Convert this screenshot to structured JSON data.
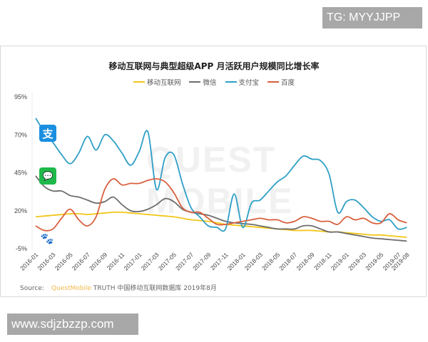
{
  "watermarks": {
    "top": "TG: MYYJJPP",
    "bottom": "www.sdjzbzzp.com",
    "background": "QUEST MOBILE"
  },
  "source": {
    "label": "Source:",
    "brand": "QuestMobile",
    "text": "TRUTH 中国移动互联网数据库 2019年8月"
  },
  "icons": {
    "alipay": "alipay-icon",
    "wechat": "wechat-icon",
    "baidu": "baidu-icon"
  },
  "chart_data": {
    "type": "line",
    "title": "移动互联网与典型超级APP 月活跃用户规模同比增长率",
    "xlabel": "",
    "ylabel": "",
    "ylim": [
      -5,
      95
    ],
    "yticks": [
      "95%",
      "70%",
      "45%",
      "20%",
      "-5%"
    ],
    "grid": false,
    "legend_position": "top",
    "xtick_labels": [
      "2016-01",
      "2016-03",
      "2016-05",
      "2016-07",
      "2016-09",
      "2016-11",
      "2017-01",
      "2017-03",
      "2017-05",
      "2017-07",
      "2017-09",
      "2017-11",
      "2018-01",
      "2018-03",
      "2018-05",
      "2018-07",
      "2018-09",
      "2018-11",
      "2019-01",
      "2019-03",
      "2019-05",
      "2019-07",
      "2019-08"
    ],
    "x": [
      "2016-01",
      "2016-02",
      "2016-03",
      "2016-04",
      "2016-05",
      "2016-06",
      "2016-07",
      "2016-08",
      "2016-09",
      "2016-10",
      "2016-11",
      "2016-12",
      "2017-01",
      "2017-02",
      "2017-03",
      "2017-04",
      "2017-05",
      "2017-06",
      "2017-07",
      "2017-08",
      "2017-09",
      "2017-10",
      "2017-11",
      "2017-12",
      "2018-01",
      "2018-02",
      "2018-03",
      "2018-04",
      "2018-05",
      "2018-06",
      "2018-07",
      "2018-08",
      "2018-09",
      "2018-10",
      "2018-11",
      "2018-12",
      "2019-01",
      "2019-02",
      "2019-03",
      "2019-04",
      "2019-05",
      "2019-06",
      "2019-07",
      "2019-08"
    ],
    "series": [
      {
        "name": "移动互联网",
        "color": "#f2c618",
        "values": [
          16,
          16.5,
          17,
          17.5,
          18,
          18,
          17.5,
          18,
          18.5,
          19,
          19,
          18.5,
          18,
          17.5,
          17,
          16.5,
          16,
          15,
          14,
          13.5,
          13,
          12,
          11,
          10.5,
          10,
          9.5,
          9,
          8.5,
          8,
          7.5,
          7,
          7,
          7,
          6.5,
          6,
          6,
          5.5,
          5,
          4.5,
          4,
          4,
          3.5,
          3,
          2.5
        ]
      },
      {
        "name": "微信",
        "color": "#6d6d6d",
        "values": [
          43,
          36,
          33,
          33,
          30,
          29,
          27,
          25,
          26,
          29,
          24,
          20,
          19.5,
          21,
          24,
          28,
          26,
          21,
          19,
          18,
          17,
          15,
          13,
          12,
          11.5,
          11,
          10,
          9,
          8,
          8,
          8,
          10,
          10,
          8,
          6,
          6,
          5,
          4,
          3,
          2,
          1.5,
          1,
          0.5,
          0
        ]
      },
      {
        "name": "支付宝",
        "color": "#2f9fc6",
        "values": [
          81,
          72,
          65,
          57,
          51,
          58,
          69,
          60,
          70,
          66,
          58,
          50,
          59,
          72,
          34,
          55,
          57,
          38,
          22,
          16,
          10,
          9,
          8,
          31,
          9,
          25,
          27,
          33,
          39,
          43,
          50,
          56,
          54,
          53,
          44,
          19,
          26,
          27,
          22,
          16,
          13,
          14,
          8,
          9
        ]
      },
      {
        "name": "百度",
        "color": "#d8603e",
        "values": [
          10,
          7,
          8,
          15,
          21,
          14,
          10,
          16,
          34,
          41,
          37,
          38,
          38,
          40,
          41,
          39,
          32,
          22,
          19,
          19,
          15,
          11,
          11,
          12,
          13,
          14,
          15,
          14,
          14,
          12,
          13,
          16,
          15,
          13,
          13,
          11,
          16,
          14,
          15,
          12,
          12,
          18,
          14,
          12
        ]
      }
    ]
  }
}
